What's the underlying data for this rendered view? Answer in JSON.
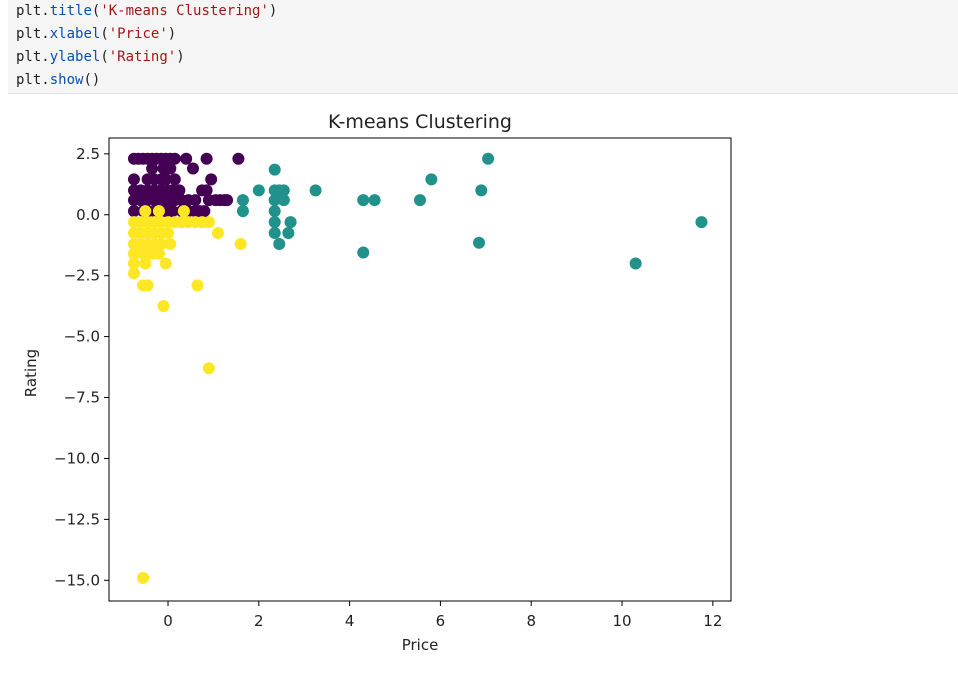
{
  "code_cell": {
    "lines": [
      {
        "obj": "plt",
        "fn": "title",
        "arg": "'K-means Clustering'"
      },
      {
        "obj": "plt",
        "fn": "xlabel",
        "arg": "'Price'"
      },
      {
        "obj": "plt",
        "fn": "ylabel",
        "arg": "'Rating'"
      },
      {
        "obj": "plt",
        "fn": "show",
        "arg": ""
      }
    ]
  },
  "chart_data": {
    "type": "scatter",
    "title": "K-means Clustering",
    "xlabel": "Price",
    "ylabel": "Rating",
    "xlim": [
      -1.3,
      12.4
    ],
    "ylim": [
      -15.85,
      3.15
    ],
    "xticks": [
      0,
      2,
      4,
      6,
      8,
      10,
      12
    ],
    "xtick_labels": [
      "0",
      "2",
      "4",
      "6",
      "8",
      "10",
      "12"
    ],
    "yticks": [
      2.5,
      0.0,
      -2.5,
      -5.0,
      -7.5,
      -10.0,
      -12.5,
      -15.0
    ],
    "ytick_labels": [
      "2.5",
      "0.0",
      "−2.5",
      "−5.0",
      "−7.5",
      "−10.0",
      "−12.5",
      "−15.0"
    ],
    "grid": false,
    "series": [
      {
        "color": "#440154",
        "points": [
          [
            -0.75,
            2.3
          ],
          [
            -0.65,
            2.3
          ],
          [
            -0.55,
            2.3
          ],
          [
            -0.45,
            2.3
          ],
          [
            -0.35,
            2.3
          ],
          [
            -0.25,
            2.3
          ],
          [
            -0.15,
            2.3
          ],
          [
            -0.05,
            2.3
          ],
          [
            0.05,
            2.3
          ],
          [
            0.15,
            2.3
          ],
          [
            0.4,
            2.3
          ],
          [
            0.85,
            2.3
          ],
          [
            1.55,
            2.3
          ],
          [
            -0.35,
            1.9
          ],
          [
            -0.1,
            1.9
          ],
          [
            0.05,
            1.9
          ],
          [
            0.55,
            1.9
          ],
          [
            -0.75,
            1.45
          ],
          [
            -0.45,
            1.45
          ],
          [
            -0.3,
            1.45
          ],
          [
            -0.15,
            1.45
          ],
          [
            -0.05,
            1.45
          ],
          [
            0.15,
            1.45
          ],
          [
            0.95,
            1.45
          ],
          [
            -0.75,
            1.0
          ],
          [
            -0.6,
            1.0
          ],
          [
            -0.45,
            1.0
          ],
          [
            -0.3,
            1.0
          ],
          [
            -0.15,
            1.0
          ],
          [
            0.0,
            1.0
          ],
          [
            0.1,
            1.0
          ],
          [
            0.25,
            1.0
          ],
          [
            0.75,
            1.0
          ],
          [
            0.85,
            1.0
          ],
          [
            -0.75,
            0.6
          ],
          [
            -0.6,
            0.6
          ],
          [
            -0.45,
            0.6
          ],
          [
            -0.3,
            0.6
          ],
          [
            -0.15,
            0.6
          ],
          [
            -0.05,
            0.6
          ],
          [
            0.05,
            0.6
          ],
          [
            0.15,
            0.6
          ],
          [
            0.3,
            0.6
          ],
          [
            0.45,
            0.6
          ],
          [
            0.6,
            0.6
          ],
          [
            0.9,
            0.6
          ],
          [
            1.05,
            0.6
          ],
          [
            1.15,
            0.6
          ],
          [
            1.25,
            0.6
          ],
          [
            1.3,
            0.6
          ],
          [
            -0.75,
            0.15
          ],
          [
            -0.55,
            0.15
          ],
          [
            -0.45,
            0.15
          ],
          [
            -0.3,
            0.15
          ],
          [
            -0.2,
            0.15
          ],
          [
            -0.05,
            0.15
          ],
          [
            0.1,
            0.15
          ],
          [
            0.3,
            0.15
          ],
          [
            0.45,
            0.15
          ],
          [
            0.6,
            0.15
          ],
          [
            0.7,
            0.15
          ],
          [
            0.8,
            0.15
          ]
        ]
      },
      {
        "color": "#21918c",
        "points": [
          [
            2.35,
            1.85
          ],
          [
            2.0,
            1.0
          ],
          [
            2.35,
            1.0
          ],
          [
            2.45,
            1.0
          ],
          [
            2.55,
            1.0
          ],
          [
            3.25,
            1.0
          ],
          [
            5.8,
            1.45
          ],
          [
            6.9,
            1.0
          ],
          [
            7.05,
            2.3
          ],
          [
            1.65,
            0.6
          ],
          [
            2.35,
            0.6
          ],
          [
            2.55,
            0.6
          ],
          [
            4.3,
            0.6
          ],
          [
            4.55,
            0.6
          ],
          [
            5.55,
            0.6
          ],
          [
            1.65,
            0.15
          ],
          [
            2.35,
            0.15
          ],
          [
            2.35,
            -0.3
          ],
          [
            2.7,
            -0.3
          ],
          [
            2.35,
            -0.75
          ],
          [
            2.65,
            -0.75
          ],
          [
            2.45,
            -1.2
          ],
          [
            4.3,
            -1.55
          ],
          [
            6.85,
            -1.15
          ],
          [
            10.3,
            -2.0
          ],
          [
            11.75,
            -0.3
          ]
        ]
      },
      {
        "color": "#fde725",
        "points": [
          [
            -0.5,
            0.15
          ],
          [
            -0.2,
            0.15
          ],
          [
            0.35,
            0.15
          ],
          [
            -0.75,
            -0.3
          ],
          [
            -0.6,
            -0.3
          ],
          [
            -0.45,
            -0.3
          ],
          [
            -0.3,
            -0.3
          ],
          [
            -0.15,
            -0.3
          ],
          [
            0.0,
            -0.3
          ],
          [
            0.15,
            -0.3
          ],
          [
            0.3,
            -0.3
          ],
          [
            0.45,
            -0.3
          ],
          [
            0.6,
            -0.3
          ],
          [
            0.75,
            -0.3
          ],
          [
            0.9,
            -0.3
          ],
          [
            -0.75,
            -0.75
          ],
          [
            -0.6,
            -0.75
          ],
          [
            -0.45,
            -0.75
          ],
          [
            -0.3,
            -0.75
          ],
          [
            -0.15,
            -0.75
          ],
          [
            0.0,
            -0.75
          ],
          [
            1.1,
            -0.75
          ],
          [
            -0.75,
            -1.2
          ],
          [
            -0.6,
            -1.2
          ],
          [
            -0.45,
            -1.2
          ],
          [
            -0.3,
            -1.2
          ],
          [
            -0.15,
            -1.2
          ],
          [
            0.05,
            -1.2
          ],
          [
            1.6,
            -1.2
          ],
          [
            -0.75,
            -1.6
          ],
          [
            -0.55,
            -1.6
          ],
          [
            -0.35,
            -1.6
          ],
          [
            -0.2,
            -1.6
          ],
          [
            -0.75,
            -2.0
          ],
          [
            -0.5,
            -2.0
          ],
          [
            -0.05,
            -2.0
          ],
          [
            -0.75,
            -2.4
          ],
          [
            -0.55,
            -2.9
          ],
          [
            -0.45,
            -2.9
          ],
          [
            0.65,
            -2.9
          ],
          [
            -0.1,
            -3.75
          ],
          [
            0.9,
            -6.3
          ],
          [
            -0.55,
            -14.9
          ]
        ]
      }
    ]
  }
}
